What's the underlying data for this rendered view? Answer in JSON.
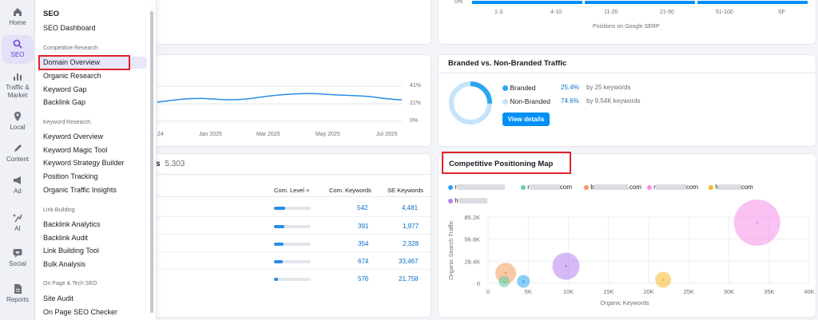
{
  "rail": {
    "items": [
      {
        "label": "Home",
        "icon": "home-icon"
      },
      {
        "label": "SEO",
        "icon": "seo-icon",
        "active": true
      },
      {
        "label": "Traffic & Market",
        "icon": "bar-chart-icon"
      },
      {
        "label": "Local",
        "icon": "map-pin-icon"
      },
      {
        "label": "Content",
        "icon": "pen-icon"
      },
      {
        "label": "Ad",
        "icon": "megaphone-icon"
      },
      {
        "label": "AI",
        "icon": "sparkle-icon"
      },
      {
        "label": "Social",
        "icon": "heart-chat-icon"
      },
      {
        "label": "Reports",
        "icon": "document-icon"
      }
    ]
  },
  "menu": {
    "title": "SEO",
    "dashboard": "SEO Dashboard",
    "sections": [
      {
        "label": "Competitive Research",
        "items": [
          "Domain Overview",
          "Organic Research",
          "Keyword Gap",
          "Backlink Gap"
        ]
      },
      {
        "label": "Keyword Research",
        "items": [
          "Keyword Overview",
          "Keyword Magic Tool",
          "Keyword Strategy Builder",
          "Position Tracking",
          "Organic Traffic Insights"
        ]
      },
      {
        "label": "Link Building",
        "items": [
          "Backlink Analytics",
          "Backlink Audit",
          "Link Building Tool",
          "Bulk Analysis"
        ]
      },
      {
        "label": "On Page & Tech SEO",
        "items": [
          "Site Audit",
          "On Page SEO Checker"
        ]
      }
    ]
  },
  "serp_chart": {
    "y_label": "0%",
    "categories": [
      "1-3",
      "4-10",
      "11-20",
      "21-50",
      "51-100",
      "SF"
    ],
    "xlabel": "Positions on Google SERP"
  },
  "trend": {
    "x_ticks": [
      "24",
      "Jan 2025",
      "Mar 2025",
      "May 2025",
      "Jul 2025"
    ],
    "y_ticks": [
      "41%",
      "21%",
      "0%"
    ]
  },
  "branded": {
    "title": "Branded vs. Non-Branded Traffic",
    "rows": [
      {
        "label": "Branded",
        "pct": "25.4%",
        "desc": "by 25 keywords",
        "color": "#2aa5f0"
      },
      {
        "label": "Non-Branded",
        "pct": "74.6%",
        "desc": "by 9.54K keywords",
        "color": "#c5e4fb"
      }
    ],
    "button": "View details"
  },
  "keywords_table": {
    "title_suffix": "s",
    "count": "5,303",
    "headers": [
      "Com. Level",
      "Com. Keywords",
      "SE Keywords"
    ],
    "rows": [
      {
        "level": 0.3,
        "com": "542",
        "se": "4,481"
      },
      {
        "level": 0.28,
        "com": "391",
        "se": "1,977"
      },
      {
        "level": 0.26,
        "com": "354",
        "se": "2,328"
      },
      {
        "level": 0.25,
        "com": "674",
        "se": "33,467"
      },
      {
        "level": 0.12,
        "com": "576",
        "se": "21,758"
      }
    ]
  },
  "cpm": {
    "title": "Competitive Positioning Map",
    "legend": [
      {
        "label": "r",
        "suffix": "",
        "color": "#2aa5f0"
      },
      {
        "label": "r",
        "suffix": "com",
        "color": "#5fd0a8"
      },
      {
        "label": "b",
        "suffix": ".com",
        "color": "#f39a5e"
      },
      {
        "label": "r",
        "suffix": "com",
        "color": "#f58fe8"
      },
      {
        "label": "h",
        "suffix": "com",
        "color": "#f5b92a"
      },
      {
        "label": "h",
        "suffix": "",
        "color": "#b77ff0"
      }
    ],
    "chart_data": {
      "type": "scatter",
      "xlabel": "Organic Keywords",
      "ylabel": "Organic Search Traffic",
      "x_ticks": [
        "0",
        "5K",
        "10K",
        "15K",
        "20K",
        "25K",
        "30K",
        "35K",
        "40K"
      ],
      "y_ticks": [
        "85.2K",
        "56.8K",
        "28.4K",
        "0"
      ],
      "xlim": [
        0,
        40000
      ],
      "ylim": [
        0,
        85200
      ],
      "points": [
        {
          "name": "b.com",
          "x": 2200,
          "y": 13000,
          "size": 13,
          "color": "#f39a5e"
        },
        {
          "name": "r.com (green)",
          "x": 2000,
          "y": 2000,
          "size": 7,
          "color": "#5fd0a8"
        },
        {
          "name": "r (blue)",
          "x": 4400,
          "y": 2500,
          "size": 8,
          "color": "#2aa5f0"
        },
        {
          "name": "h (purple)",
          "x": 9700,
          "y": 22000,
          "size": 17,
          "color": "#b77ff0"
        },
        {
          "name": "h.com (yellow)",
          "x": 21800,
          "y": 4500,
          "size": 10,
          "color": "#f5b92a"
        },
        {
          "name": "r.com (pink)",
          "x": 33500,
          "y": 78000,
          "size": 29,
          "color": "#f58fe8"
        }
      ]
    }
  }
}
